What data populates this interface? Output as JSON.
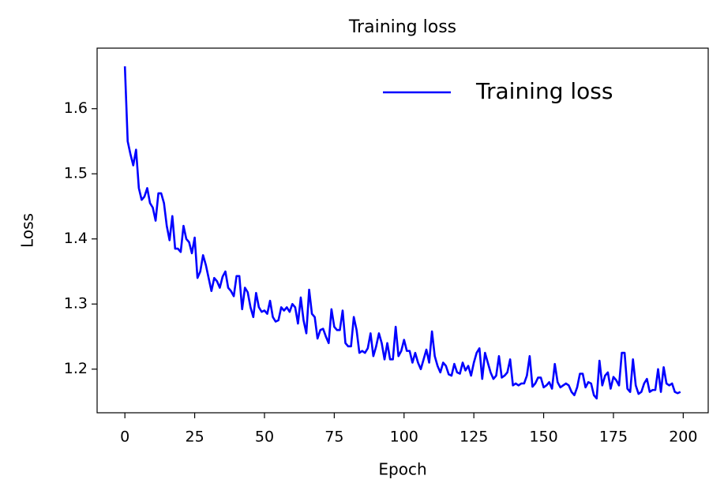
{
  "chart_data": {
    "type": "line",
    "title": "Training loss",
    "x_label": "Epoch",
    "y_label": "Loss",
    "x": [
      0,
      1,
      2,
      3,
      4,
      5,
      6,
      7,
      8,
      9,
      10,
      11,
      12,
      13,
      14,
      15,
      16,
      17,
      18,
      19,
      20,
      21,
      22,
      23,
      24,
      25,
      26,
      27,
      28,
      29,
      30,
      31,
      32,
      33,
      34,
      35,
      36,
      37,
      38,
      39,
      40,
      41,
      42,
      43,
      44,
      45,
      46,
      47,
      48,
      49,
      50,
      51,
      52,
      53,
      54,
      55,
      56,
      57,
      58,
      59,
      60,
      61,
      62,
      63,
      64,
      65,
      66,
      67,
      68,
      69,
      70,
      71,
      72,
      73,
      74,
      75,
      76,
      77,
      78,
      79,
      80,
      81,
      82,
      83,
      84,
      85,
      86,
      87,
      88,
      89,
      90,
      91,
      92,
      93,
      94,
      95,
      96,
      97,
      98,
      99,
      100,
      101,
      102,
      103,
      104,
      105,
      106,
      107,
      108,
      109,
      110,
      111,
      112,
      113,
      114,
      115,
      116,
      117,
      118,
      119,
      120,
      121,
      122,
      123,
      124,
      125,
      126,
      127,
      128,
      129,
      130,
      131,
      132,
      133,
      134,
      135,
      136,
      137,
      138,
      139,
      140,
      141,
      142,
      143,
      144,
      145,
      146,
      147,
      148,
      149,
      150,
      151,
      152,
      153,
      154,
      155,
      156,
      157,
      158,
      159,
      160,
      161,
      162,
      163,
      164,
      165,
      166,
      167,
      168,
      169,
      170,
      171,
      172,
      173,
      174,
      175,
      176,
      177,
      178,
      179,
      180,
      181,
      182,
      183,
      184,
      185,
      186,
      187,
      188,
      189,
      190,
      191,
      192,
      193,
      194,
      195,
      196,
      197,
      198,
      199
    ],
    "series": [
      {
        "name": "Training loss",
        "color": "#0000ff",
        "values": [
          1.665,
          1.55,
          1.53,
          1.513,
          1.537,
          1.478,
          1.46,
          1.465,
          1.478,
          1.455,
          1.448,
          1.428,
          1.47,
          1.47,
          1.455,
          1.42,
          1.398,
          1.435,
          1.385,
          1.385,
          1.38,
          1.42,
          1.4,
          1.395,
          1.378,
          1.402,
          1.34,
          1.35,
          1.375,
          1.36,
          1.34,
          1.32,
          1.34,
          1.335,
          1.325,
          1.342,
          1.35,
          1.325,
          1.32,
          1.312,
          1.343,
          1.343,
          1.292,
          1.325,
          1.318,
          1.295,
          1.28,
          1.317,
          1.295,
          1.288,
          1.29,
          1.285,
          1.305,
          1.28,
          1.273,
          1.275,
          1.295,
          1.29,
          1.295,
          1.288,
          1.3,
          1.295,
          1.27,
          1.31,
          1.275,
          1.255,
          1.322,
          1.285,
          1.28,
          1.247,
          1.26,
          1.262,
          1.25,
          1.24,
          1.292,
          1.265,
          1.26,
          1.26,
          1.29,
          1.24,
          1.235,
          1.235,
          1.28,
          1.26,
          1.225,
          1.228,
          1.225,
          1.232,
          1.255,
          1.22,
          1.235,
          1.255,
          1.24,
          1.215,
          1.24,
          1.215,
          1.215,
          1.265,
          1.22,
          1.228,
          1.245,
          1.228,
          1.228,
          1.21,
          1.225,
          1.21,
          1.2,
          1.215,
          1.23,
          1.21,
          1.258,
          1.22,
          1.205,
          1.195,
          1.21,
          1.205,
          1.192,
          1.19,
          1.208,
          1.195,
          1.193,
          1.21,
          1.198,
          1.205,
          1.19,
          1.21,
          1.225,
          1.232,
          1.185,
          1.225,
          1.21,
          1.195,
          1.185,
          1.19,
          1.22,
          1.187,
          1.19,
          1.195,
          1.215,
          1.175,
          1.178,
          1.175,
          1.178,
          1.178,
          1.19,
          1.22,
          1.173,
          1.178,
          1.187,
          1.187,
          1.172,
          1.175,
          1.18,
          1.17,
          1.208,
          1.18,
          1.172,
          1.175,
          1.178,
          1.175,
          1.165,
          1.16,
          1.172,
          1.193,
          1.193,
          1.172,
          1.18,
          1.178,
          1.16,
          1.155,
          1.213,
          1.175,
          1.19,
          1.195,
          1.17,
          1.188,
          1.183,
          1.175,
          1.225,
          1.225,
          1.17,
          1.165,
          1.215,
          1.175,
          1.162,
          1.165,
          1.178,
          1.185,
          1.165,
          1.168,
          1.168,
          1.2,
          1.165,
          1.203,
          1.178,
          1.175,
          1.178,
          1.165,
          1.163,
          1.165
        ]
      }
    ],
    "xlim": [
      -9.95,
      208.95
    ],
    "ylim": [
      1.133,
      1.693
    ],
    "xticks": [
      0,
      25,
      50,
      75,
      100,
      125,
      150,
      175,
      200
    ],
    "yticks": [
      1.2,
      1.3,
      1.4,
      1.5,
      1.6
    ],
    "legend": "upper right"
  }
}
